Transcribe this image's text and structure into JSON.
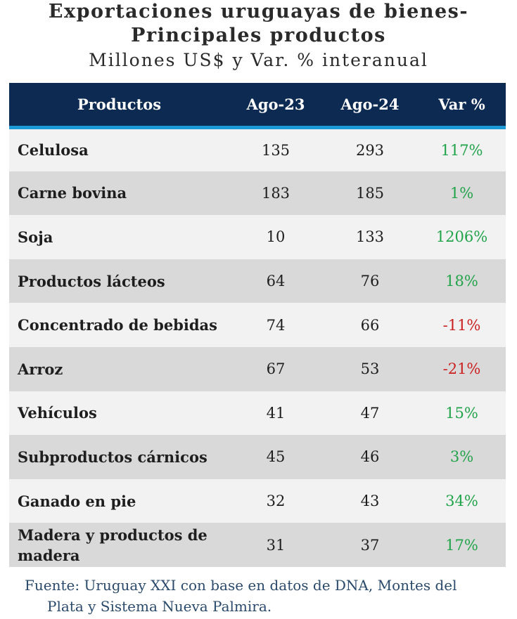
{
  "title": {
    "line1": "Exportaciones uruguayas de bienes-",
    "line2": "Principales productos",
    "subtitle": "Millones US$ y Var. % interanual"
  },
  "colors": {
    "header_bg": "#0d2a52",
    "header_rule": "#1c9ad6",
    "positive": "#21a34a",
    "negative": "#cc1f1f"
  },
  "chart_data": {
    "type": "table",
    "columns": [
      "Productos",
      "Ago-23",
      "Ago-24",
      "Var %"
    ],
    "rows": [
      {
        "product": "Celulosa",
        "ago23": "135",
        "ago24": "293",
        "var": "117%"
      },
      {
        "product": "Carne bovina",
        "ago23": "183",
        "ago24": "185",
        "var": "1%"
      },
      {
        "product": "Soja",
        "ago23": "10",
        "ago24": "133",
        "var": "1206%"
      },
      {
        "product": "Productos lácteos",
        "ago23": "64",
        "ago24": "76",
        "var": "18%"
      },
      {
        "product": "Concentrado de bebidas",
        "ago23": "74",
        "ago24": "66",
        "var": "-11%"
      },
      {
        "product": "Arroz",
        "ago23": "67",
        "ago24": "53",
        "var": "-21%"
      },
      {
        "product": "Vehículos",
        "ago23": "41",
        "ago24": "47",
        "var": "15%"
      },
      {
        "product": "Subproductos cárnicos",
        "ago23": "45",
        "ago24": "46",
        "var": "3%"
      },
      {
        "product": "Ganado en pie",
        "ago23": "32",
        "ago24": "43",
        "var": "34%"
      },
      {
        "product": "Madera y productos de madera",
        "ago23": "31",
        "ago24": "37",
        "var": "17%"
      }
    ]
  },
  "source": {
    "line1": "Fuente: Uruguay XXI con base en datos de DNA, Montes del",
    "line2": "Plata y Sistema Nueva Palmira."
  }
}
